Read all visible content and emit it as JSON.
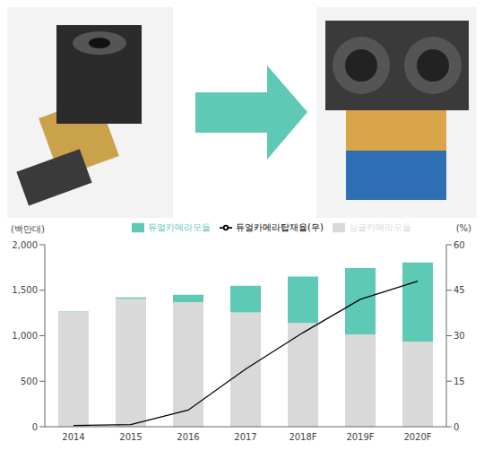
{
  "chart_data": {
    "type": "bar",
    "stacked": true,
    "categories": [
      "2014",
      "2015",
      "2016",
      "2017",
      "2018F",
      "2019F",
      "2020F"
    ],
    "series": [
      {
        "name": "싱글카메라모듈",
        "color": "#d9d9d9",
        "values": [
          1260,
          1410,
          1370,
          1255,
          1140,
          1015,
          935
        ]
      },
      {
        "name": "듀얼카메라모듈",
        "color": "#5ec9b5",
        "values": [
          5,
          12,
          80,
          295,
          510,
          730,
          870
        ]
      },
      {
        "name": "듀얼카메라탑재율(우)",
        "type": "line",
        "axis": "y2",
        "color": "#000000",
        "values": [
          0.4,
          0.7,
          5.5,
          19,
          31,
          42,
          48
        ]
      }
    ],
    "ylabel": "(백만대)",
    "y2label": "(%)",
    "ylim": [
      0,
      2000
    ],
    "yticks": [
      0,
      500,
      {
        "value": 1000,
        "label": "1,000"
      },
      {
        "value": 1500,
        "label": "1,500"
      },
      {
        "value": 2000,
        "label": "2,000"
      }
    ],
    "y2lim": [
      0,
      60
    ],
    "y2ticks": [
      0,
      15,
      30,
      45,
      60
    ],
    "legend": "top",
    "grid": false
  }
}
